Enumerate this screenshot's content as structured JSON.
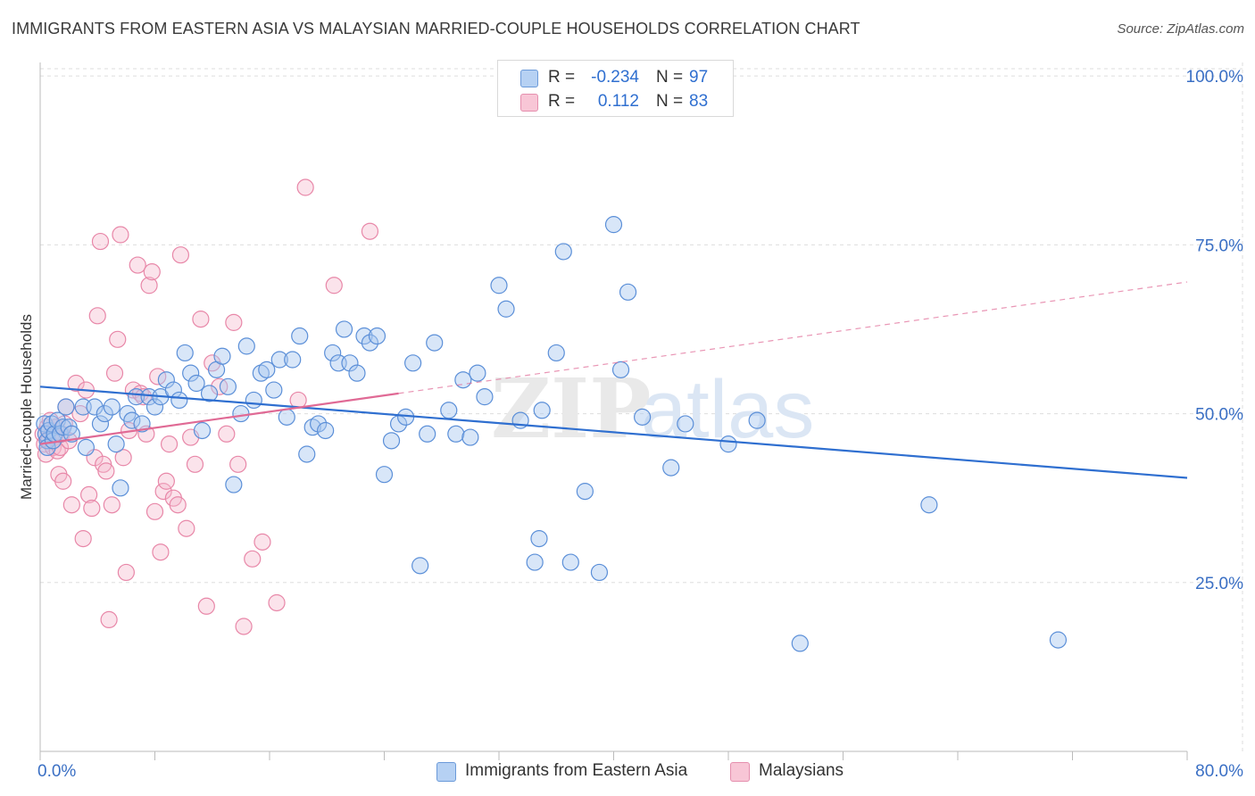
{
  "header": {
    "title": "IMMIGRANTS FROM EASTERN ASIA VS MALAYSIAN MARRIED-COUPLE HOUSEHOLDS CORRELATION CHART",
    "source": "Source: ZipAtlas.com"
  },
  "legend_top": {
    "rows": [
      {
        "r_label": "R =",
        "r_value": "-0.234",
        "n_label": "N =",
        "n_value": "97"
      },
      {
        "r_label": "R =",
        "r_value": "0.112",
        "n_label": "N =",
        "n_value": "83"
      }
    ]
  },
  "legend_bottom": {
    "series1": "Immigrants from Eastern Asia",
    "series2": "Malaysians"
  },
  "watermark": {
    "part1": "ZIP",
    "part2": "atlas"
  },
  "colors": {
    "blue_fill": "#a8c8f0",
    "blue_stroke": "#5b8fd8",
    "blue_line": "#2f6fd0",
    "pink_fill": "#f6b8cc",
    "pink_stroke": "#e887a8",
    "pink_line": "#e06a95",
    "axis_text": "#3a6fc4",
    "grid": "#dddddd"
  },
  "chart_data": {
    "type": "scatter",
    "title": "IMMIGRANTS FROM EASTERN ASIA VS MALAYSIAN MARRIED-COUPLE HOUSEHOLDS CORRELATION CHART",
    "xlabel": "",
    "ylabel": "Married-couple Households",
    "xlim": [
      0,
      80
    ],
    "ylim": [
      0,
      102
    ],
    "x_tick_labels": [
      "0.0%",
      "80.0%"
    ],
    "y_ticks": [
      25,
      50,
      75,
      100
    ],
    "y_tick_labels": [
      "25.0%",
      "50.0%",
      "75.0%",
      "100.0%"
    ],
    "grid": true,
    "legend_position": "top-center",
    "series": [
      {
        "name": "Immigrants from Eastern Asia",
        "R": -0.234,
        "N": 97,
        "trend": {
          "x0": 0,
          "y0": 54.0,
          "x1": 80,
          "y1": 40.5,
          "solid_until": 80
        },
        "points": [
          [
            0.3,
            48.5
          ],
          [
            0.4,
            47
          ],
          [
            0.5,
            46
          ],
          [
            0.5,
            45
          ],
          [
            0.6,
            47.5
          ],
          [
            0.8,
            48.5
          ],
          [
            0.9,
            46
          ],
          [
            1.0,
            47
          ],
          [
            1.2,
            49
          ],
          [
            1.4,
            47
          ],
          [
            1.6,
            48
          ],
          [
            1.8,
            51
          ],
          [
            2.0,
            48
          ],
          [
            2.2,
            47
          ],
          [
            3.0,
            51
          ],
          [
            3.2,
            45
          ],
          [
            3.8,
            51
          ],
          [
            4.2,
            48.5
          ],
          [
            4.5,
            50
          ],
          [
            5.0,
            51
          ],
          [
            5.3,
            45.5
          ],
          [
            5.6,
            39
          ],
          [
            6.1,
            50
          ],
          [
            6.4,
            49
          ],
          [
            6.7,
            52.5
          ],
          [
            7.1,
            48.5
          ],
          [
            7.6,
            52.5
          ],
          [
            8.0,
            51
          ],
          [
            8.4,
            52.5
          ],
          [
            8.8,
            55
          ],
          [
            9.3,
            53.5
          ],
          [
            9.7,
            52
          ],
          [
            10.1,
            59
          ],
          [
            10.5,
            56
          ],
          [
            10.9,
            54.5
          ],
          [
            11.3,
            47.5
          ],
          [
            11.8,
            53
          ],
          [
            12.3,
            56.5
          ],
          [
            12.7,
            58.5
          ],
          [
            13.1,
            54
          ],
          [
            13.5,
            39.5
          ],
          [
            14.0,
            50
          ],
          [
            14.4,
            60
          ],
          [
            14.9,
            52
          ],
          [
            15.4,
            56
          ],
          [
            15.8,
            56.5
          ],
          [
            16.3,
            53.5
          ],
          [
            16.7,
            58
          ],
          [
            17.2,
            49.5
          ],
          [
            17.6,
            58
          ],
          [
            18.1,
            61.5
          ],
          [
            18.6,
            44
          ],
          [
            19.0,
            48
          ],
          [
            19.4,
            48.5
          ],
          [
            19.9,
            47.5
          ],
          [
            20.4,
            59
          ],
          [
            20.8,
            57.5
          ],
          [
            21.2,
            62.5
          ],
          [
            21.6,
            57.5
          ],
          [
            22.1,
            56
          ],
          [
            22.6,
            61.5
          ],
          [
            23.0,
            60.5
          ],
          [
            23.5,
            61.5
          ],
          [
            24.0,
            41
          ],
          [
            24.5,
            46
          ],
          [
            25.0,
            48.5
          ],
          [
            25.5,
            49.5
          ],
          [
            26.0,
            57.5
          ],
          [
            26.5,
            27.5
          ],
          [
            27.0,
            47
          ],
          [
            27.5,
            60.5
          ],
          [
            28.5,
            50.5
          ],
          [
            29.0,
            47
          ],
          [
            29.5,
            55
          ],
          [
            30.0,
            46.5
          ],
          [
            30.5,
            56
          ],
          [
            31.0,
            52.5
          ],
          [
            32.0,
            69
          ],
          [
            32.5,
            65.5
          ],
          [
            33.5,
            49
          ],
          [
            34.5,
            28
          ],
          [
            34.8,
            31.5
          ],
          [
            35.0,
            50.5
          ],
          [
            36.0,
            59
          ],
          [
            36.5,
            74
          ],
          [
            37.0,
            28
          ],
          [
            38.0,
            38.5
          ],
          [
            39.0,
            26.5
          ],
          [
            40.0,
            78
          ],
          [
            40.5,
            56.5
          ],
          [
            41.0,
            68
          ],
          [
            42.0,
            49.5
          ],
          [
            44.0,
            42
          ],
          [
            45.0,
            48.5
          ],
          [
            48.0,
            45.5
          ],
          [
            50.0,
            49
          ],
          [
            53.0,
            16
          ],
          [
            62.0,
            36.5
          ],
          [
            71.0,
            16.5
          ]
        ]
      },
      {
        "name": "Malaysians",
        "R": 0.112,
        "N": 83,
        "trend": {
          "x0": 0,
          "y0": 45.5,
          "x1": 80,
          "y1": 69.5,
          "solid_until": 25
        },
        "points": [
          [
            0.2,
            47
          ],
          [
            0.3,
            45.5
          ],
          [
            0.4,
            44
          ],
          [
            0.5,
            48
          ],
          [
            0.6,
            46
          ],
          [
            0.7,
            49
          ],
          [
            0.8,
            47
          ],
          [
            0.9,
            45
          ],
          [
            1.0,
            46.5
          ],
          [
            1.1,
            48
          ],
          [
            1.2,
            44.5
          ],
          [
            1.3,
            41
          ],
          [
            1.4,
            45
          ],
          [
            1.5,
            47
          ],
          [
            1.6,
            40
          ],
          [
            1.7,
            48.5
          ],
          [
            1.8,
            51
          ],
          [
            2.0,
            46
          ],
          [
            2.2,
            36.5
          ],
          [
            2.5,
            54.5
          ],
          [
            2.8,
            50
          ],
          [
            3.0,
            31.5
          ],
          [
            3.2,
            53.5
          ],
          [
            3.4,
            38
          ],
          [
            3.6,
            36
          ],
          [
            3.8,
            43.5
          ],
          [
            4.0,
            64.5
          ],
          [
            4.2,
            75.5
          ],
          [
            4.4,
            42.5
          ],
          [
            4.6,
            41.5
          ],
          [
            4.8,
            19.5
          ],
          [
            5.0,
            36.5
          ],
          [
            5.2,
            56
          ],
          [
            5.4,
            61
          ],
          [
            5.6,
            76.5
          ],
          [
            5.8,
            43.5
          ],
          [
            6.0,
            26.5
          ],
          [
            6.2,
            47.5
          ],
          [
            6.5,
            53.5
          ],
          [
            6.8,
            72
          ],
          [
            7.0,
            53
          ],
          [
            7.2,
            52.5
          ],
          [
            7.4,
            47
          ],
          [
            7.6,
            69
          ],
          [
            7.8,
            71
          ],
          [
            8.0,
            35.5
          ],
          [
            8.2,
            55.5
          ],
          [
            8.4,
            29.5
          ],
          [
            8.6,
            38.5
          ],
          [
            8.8,
            40
          ],
          [
            9.0,
            45.5
          ],
          [
            9.3,
            37.5
          ],
          [
            9.6,
            36.5
          ],
          [
            9.8,
            73.5
          ],
          [
            10.2,
            33
          ],
          [
            10.5,
            46.5
          ],
          [
            10.8,
            42.5
          ],
          [
            11.2,
            64
          ],
          [
            11.6,
            21.5
          ],
          [
            12.0,
            57.5
          ],
          [
            12.5,
            54
          ],
          [
            13.0,
            47
          ],
          [
            13.5,
            63.5
          ],
          [
            13.8,
            42.5
          ],
          [
            14.2,
            18.5
          ],
          [
            14.8,
            28.5
          ],
          [
            15.5,
            31
          ],
          [
            16.5,
            22
          ],
          [
            18.0,
            52
          ],
          [
            18.5,
            83.5
          ],
          [
            20.5,
            69
          ],
          [
            23.0,
            77
          ]
        ]
      }
    ]
  }
}
